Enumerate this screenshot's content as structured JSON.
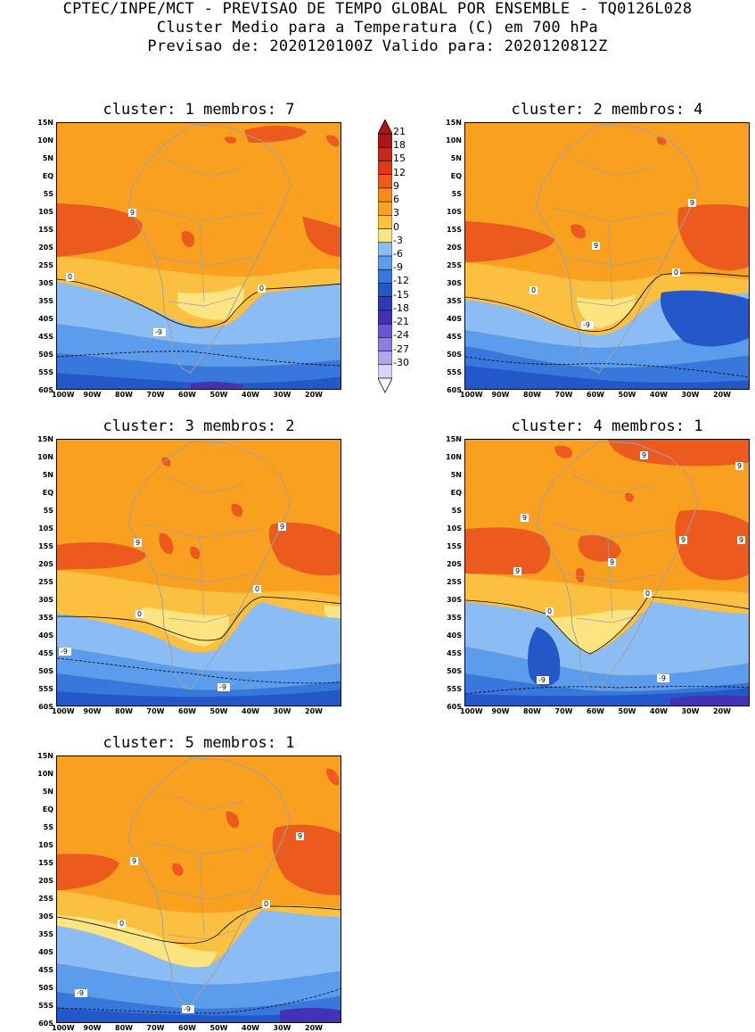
{
  "header": {
    "line1": "CPTEC/INPE/MCT - PREVISAO DE TEMPO GLOBAL POR ENSEMBLE - TQ0126L028",
    "line2": "Cluster Medio para a Temperatura (C) em 700 hPa",
    "line3": "Previsao de: 2020120100Z   Valido para: 2020120812Z"
  },
  "panels": [
    {
      "title": "cluster: 1   membros: 7"
    },
    {
      "title": "cluster: 2   membros: 4"
    },
    {
      "title": "cluster: 3   membros: 2"
    },
    {
      "title": "cluster: 4   membros: 1"
    },
    {
      "title": "cluster: 5   membros: 1"
    }
  ],
  "lat_labels": [
    "15N",
    "10N",
    "5N",
    "EQ",
    "5S",
    "10S",
    "15S",
    "20S",
    "25S",
    "30S",
    "35S",
    "40S",
    "45S",
    "50S",
    "55S",
    "60S"
  ],
  "lon_labels": [
    "100W",
    "90W",
    "80W",
    "70W",
    "60W",
    "50W",
    "40W",
    "30W",
    "20W"
  ],
  "colorbar": {
    "labels": [
      "21",
      "18",
      "15",
      "12",
      "9",
      "6",
      "3",
      "0",
      "-3",
      "-6",
      "-9",
      "-12",
      "-15",
      "-18",
      "-21",
      "-24",
      "-27",
      "-30"
    ],
    "colors": [
      "#a81818",
      "#c42a1c",
      "#e03818",
      "#ec5a1e",
      "#f88a18",
      "#f9a020",
      "#fbc040",
      "#fce480",
      "#8cbcf4",
      "#5c9cec",
      "#3878dc",
      "#2458c8",
      "#2c3cb8",
      "#4432b4",
      "#6a56d0",
      "#8e7ce0",
      "#b4a4ec",
      "#dcd4f8"
    ]
  },
  "colors": {
    "warm_orange": "#f9a020",
    "dark_orange": "#ec5a1e",
    "light_orange": "#fbc040",
    "pale_yellow": "#fce480",
    "light_blue": "#8cbcf4",
    "mid_blue": "#5c9cec",
    "blue": "#3878dc",
    "deep_blue": "#2458c8",
    "violet": "#4432b4",
    "land_outline": "#a0a0a0"
  },
  "contour_labels": {
    "p1": [
      "9",
      "0",
      "0",
      "-9"
    ],
    "p2": [
      "9",
      "9",
      "0",
      "0",
      "-9"
    ],
    "p3": [
      "9",
      "9",
      "0",
      "0",
      "-9",
      "-9"
    ],
    "p4": [
      "9",
      "9",
      "9",
      "9",
      "9",
      "9",
      "9",
      "0",
      "0",
      "-9",
      "-9"
    ],
    "p5": [
      "9",
      "9",
      "0",
      "0",
      "-9",
      "-9"
    ]
  }
}
